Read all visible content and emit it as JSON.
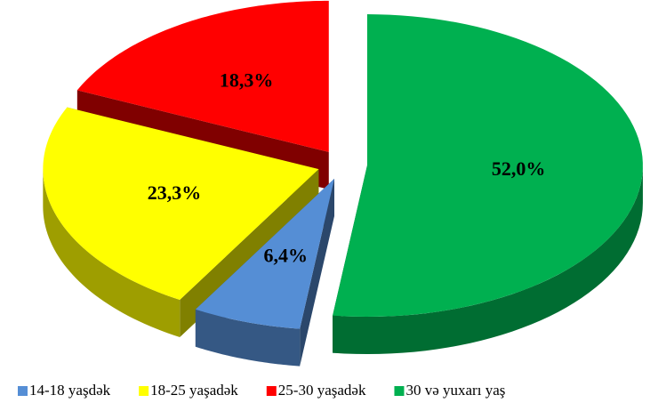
{
  "chart_data": {
    "type": "pie",
    "categories": [
      "14-18 yaşdək",
      "18-25 yaşadək",
      "25-30 yaşadək",
      "30 və yuxarı yaş"
    ],
    "values": [
      6.4,
      23.3,
      18.3,
      52.0
    ],
    "value_labels": [
      "6,4%",
      "23,3%",
      "18,3%",
      "52,0%"
    ],
    "colors": [
      "#558ed5",
      "#ffff00",
      "#ff0000",
      "#00b050"
    ],
    "legend": "bottom"
  }
}
